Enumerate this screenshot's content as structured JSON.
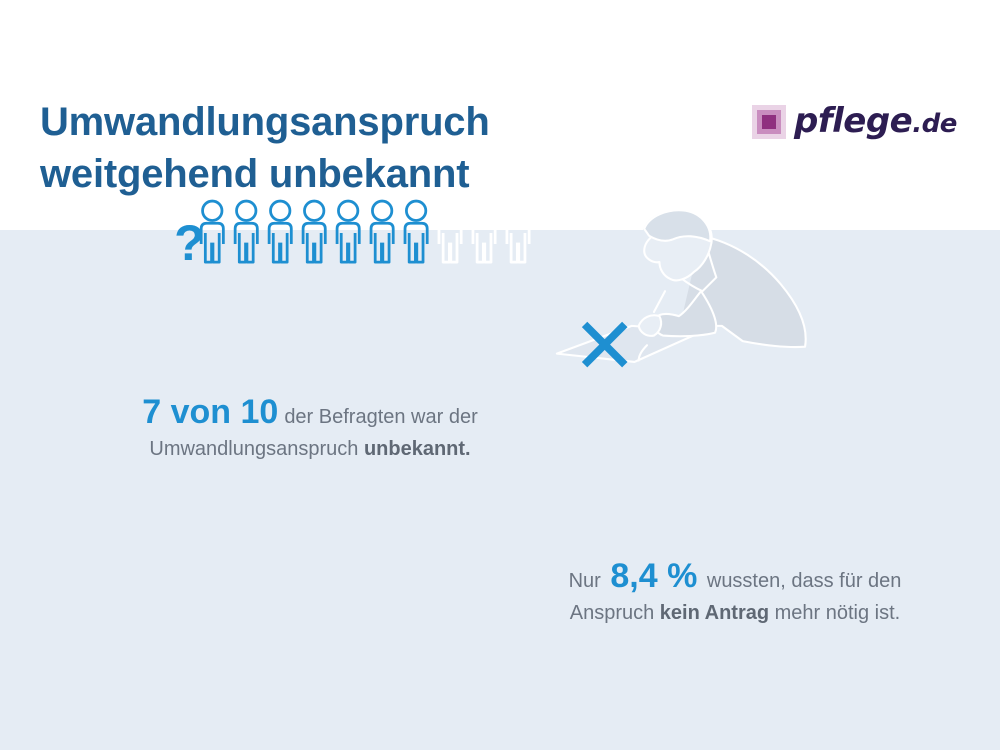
{
  "title": {
    "line1": "Umwandlungsanspruch",
    "line2": "weitgehend unbekannt"
  },
  "logo": {
    "name": "pflege",
    "tld": ".de"
  },
  "stat_unknown": {
    "value": "7 von 10",
    "line1_rest": "der Befragten war der",
    "line2_a": "Umwandlungsanspruch ",
    "line2_bold": "unbekannt."
  },
  "stat_known": {
    "prefix": "Nur ",
    "value": "8,4 %",
    "line1_rest": " wussten, dass für den",
    "line2_a": "Anspruch ",
    "line2_bold": "kein Antrag",
    "line2_b": " mehr nötig ist."
  },
  "question_mark": "?",
  "people": {
    "total": 10,
    "unaware": 7,
    "colors": {
      "unaware": "#1e8fd1",
      "aware": "#ffffff"
    }
  },
  "colors": {
    "title": "#1f5f93",
    "accent": "#1e8fd1",
    "background": "#e5ecf4",
    "logo": "#2d1d52"
  },
  "icons": [
    "person-icon",
    "question-mark-icon",
    "writing-person-illustration",
    "cross-mark-icon",
    "logo-mark-icon"
  ]
}
